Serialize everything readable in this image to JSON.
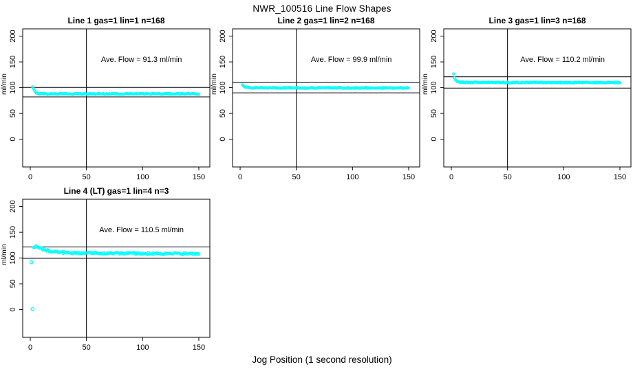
{
  "title": "NWR_100516  Line Flow Shapes",
  "xlabel": "Jog Position (1 second resolution)",
  "colors": {
    "points": "#00FFFF",
    "axis": "#000000",
    "background": "#FFFFFF"
  },
  "chart_data": [
    {
      "type": "scatter",
      "title": "Line 1 gas=1 lin=1 n=168",
      "ylabel": "ml/min",
      "annotation": "Ave. Flow =  91.3  ml/min",
      "annotation_pos": [
        99,
        150
      ],
      "ave_flow": 91.3,
      "n": 168,
      "xlim": [
        0,
        150
      ],
      "ylim": [
        0,
        200
      ],
      "x_ticks": [
        0,
        50,
        100,
        150
      ],
      "y_ticks": [
        0,
        50,
        100,
        150,
        200
      ],
      "vline_x": 50,
      "ref_lines": [
        100.4,
        82.2
      ],
      "x_start": 2,
      "x_end": 150,
      "noise": 1.0,
      "anchors": [
        [
          2,
          101
        ],
        [
          3,
          97
        ],
        [
          4,
          93
        ],
        [
          5,
          91
        ],
        [
          6,
          89.5
        ],
        [
          8,
          88.5
        ],
        [
          15,
          88
        ],
        [
          50,
          88
        ],
        [
          100,
          88
        ],
        [
          150,
          88
        ]
      ],
      "outliers": []
    },
    {
      "type": "scatter",
      "title": "Line 2 gas=1 lin=2 n=168",
      "ylabel": "ml/min",
      "annotation": "Ave. Flow =  99.9  ml/min",
      "annotation_pos": [
        99,
        150
      ],
      "ave_flow": 99.9,
      "n": 168,
      "xlim": [
        0,
        150
      ],
      "ylim": [
        0,
        200
      ],
      "x_ticks": [
        0,
        50,
        100,
        150
      ],
      "y_ticks": [
        0,
        50,
        100,
        150,
        200
      ],
      "vline_x": 50,
      "ref_lines": [
        109.9,
        89.9
      ],
      "x_start": 2,
      "x_end": 150,
      "noise": 1.0,
      "anchors": [
        [
          2,
          106
        ],
        [
          3,
          104
        ],
        [
          4,
          102
        ],
        [
          5,
          101
        ],
        [
          7,
          100
        ],
        [
          10,
          99.7
        ],
        [
          50,
          99.5
        ],
        [
          100,
          99.5
        ],
        [
          150,
          99.5
        ]
      ],
      "outliers": []
    },
    {
      "type": "scatter",
      "title": "Line 3 gas=1 lin=3 n=168",
      "ylabel": "ml/min",
      "annotation": "Ave. Flow =  110.2  ml/min",
      "annotation_pos": [
        99,
        150
      ],
      "ave_flow": 110.2,
      "n": 168,
      "xlim": [
        0,
        150
      ],
      "ylim": [
        0,
        200
      ],
      "x_ticks": [
        0,
        50,
        100,
        150
      ],
      "y_ticks": [
        0,
        50,
        100,
        150,
        200
      ],
      "vline_x": 50,
      "ref_lines": [
        121.2,
        99.2
      ],
      "x_start": 2,
      "x_end": 150,
      "noise": 0.9,
      "anchors": [
        [
          2,
          127
        ],
        [
          3,
          118
        ],
        [
          4,
          114
        ],
        [
          5,
          112
        ],
        [
          7,
          111
        ],
        [
          10,
          110.5
        ],
        [
          50,
          110
        ],
        [
          100,
          110
        ],
        [
          150,
          110
        ]
      ],
      "outliers": []
    },
    {
      "type": "scatter",
      "title": "Line 4 (LT) gas=1 lin=4 n=3",
      "ylabel": "ml/min",
      "annotation": "Ave. Flow =  110.5  ml/min",
      "annotation_pos": [
        99,
        150
      ],
      "ave_flow": 110.5,
      "n": 3,
      "xlim": [
        0,
        150
      ],
      "ylim": [
        0,
        200
      ],
      "x_ticks": [
        0,
        50,
        100,
        150
      ],
      "y_ticks": [
        0,
        50,
        100,
        150,
        200
      ],
      "vline_x": 50,
      "ref_lines": [
        121.6,
        99.5
      ],
      "x_start": 3,
      "x_end": 150,
      "noise": 1.9,
      "anchors": [
        [
          3,
          121
        ],
        [
          5,
          122
        ],
        [
          7,
          120
        ],
        [
          10,
          117.5
        ],
        [
          14,
          115
        ],
        [
          18,
          113
        ],
        [
          24,
          111.5
        ],
        [
          30,
          110.5
        ],
        [
          40,
          110
        ],
        [
          60,
          109.5
        ],
        [
          100,
          109
        ],
        [
          150,
          108.5
        ]
      ],
      "outliers": [
        [
          1,
          92
        ],
        [
          2,
          1
        ]
      ]
    }
  ]
}
